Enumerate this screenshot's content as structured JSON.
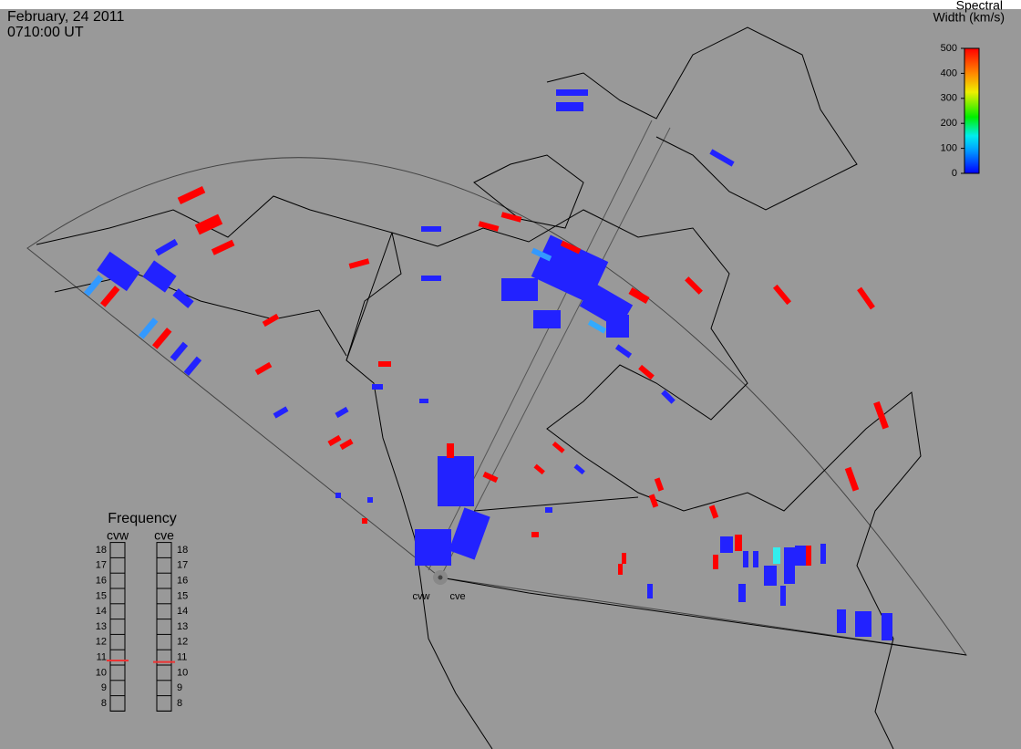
{
  "header": {
    "date": "February, 24 2011",
    "time": "0710:00 UT"
  },
  "colorbar": {
    "title_line1": "Spectral",
    "title_line2": "Width (km/s)",
    "lim": [
      0,
      500
    ],
    "ticks": [
      0,
      100,
      200,
      300,
      400,
      500
    ]
  },
  "frequency": {
    "title": "Frequency",
    "lim": [
      8,
      18
    ],
    "ticks": [
      8,
      9,
      10,
      11,
      12,
      13,
      14,
      15,
      16,
      17,
      18
    ],
    "radars": [
      {
        "name": "cvw",
        "value": 10.8
      },
      {
        "name": "cve",
        "value": 10.7
      }
    ]
  },
  "radar_labels": [
    "cvw",
    "cve"
  ]
}
